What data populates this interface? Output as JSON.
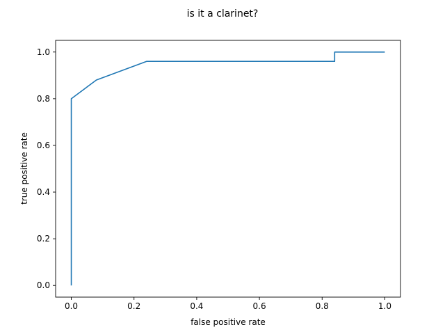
{
  "chart_data": {
    "type": "line",
    "title": "is it a clarinet?",
    "xlabel": "false positive rate",
    "ylabel": "true positive rate",
    "xlim": [
      -0.05,
      1.05
    ],
    "ylim": [
      -0.05,
      1.05
    ],
    "xticks": [
      0.0,
      0.2,
      0.4,
      0.6,
      0.8,
      1.0
    ],
    "xtick_labels": [
      "0.0",
      "0.2",
      "0.4",
      "0.6",
      "0.8",
      "1.0"
    ],
    "yticks": [
      0.0,
      0.2,
      0.4,
      0.6,
      0.8,
      1.0
    ],
    "ytick_labels": [
      "0.0",
      "0.2",
      "0.4",
      "0.6",
      "0.8",
      "1.0"
    ],
    "grid": false,
    "legend": "none",
    "series": [
      {
        "color": "#1f77b4",
        "x": [
          0.0,
          0.0,
          0.08,
          0.24,
          0.84,
          0.84,
          1.0
        ],
        "y": [
          0.0,
          0.8,
          0.88,
          0.96,
          0.96,
          1.0,
          1.0
        ]
      }
    ]
  }
}
